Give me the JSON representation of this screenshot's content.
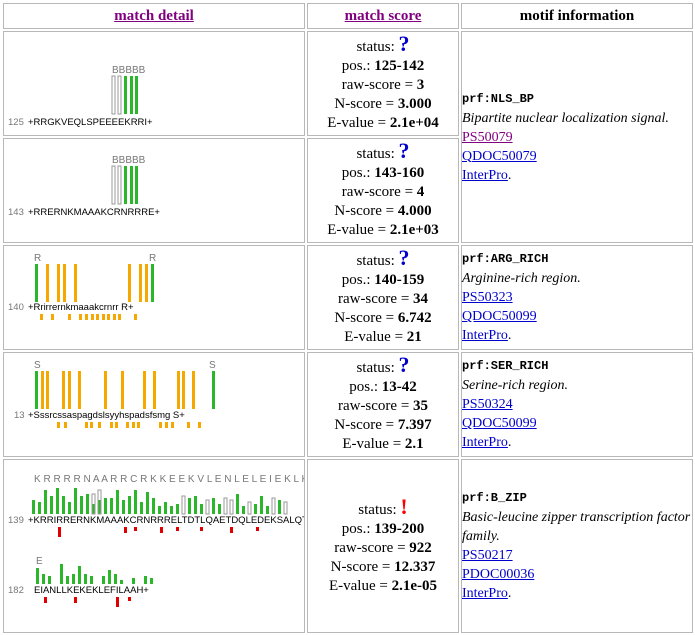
{
  "headers": {
    "detail": "match detail",
    "score": "match score",
    "motif": "motif information"
  },
  "rows": [
    {
      "status_symbol": "?",
      "pos": "125-142",
      "raw_score": "3",
      "n_score": "3.000",
      "e_value": "2.1e+04",
      "motif_id": "prf:NLS_BP",
      "description": "Bipartite nuclear localization signal.",
      "link1": "PS50079",
      "link2": "QDOC50079",
      "link3": "InterPro",
      "seq_start": "125",
      "seq": "+RRGKVEQLSPEEEEKRRI+",
      "labels": "BBBBB"
    },
    {
      "status_symbol": "?",
      "pos": "143-160",
      "raw_score": "4",
      "n_score": "4.000",
      "e_value": "2.1e+03",
      "motif_id": "",
      "description": "",
      "link1": "",
      "link2": "",
      "link3": "",
      "seq_start": "143",
      "seq": "+RRERNKMAAAKCRNRRRE+",
      "labels": "BBBBB"
    },
    {
      "status_symbol": "?",
      "pos": "140-159",
      "raw_score": "34",
      "n_score": "6.742",
      "e_value": "21",
      "motif_id": "prf:ARG_RICH",
      "description": "Arginine-rich region.",
      "link1": "PS50323",
      "link2": "QDOC50099",
      "link3": "InterPro",
      "seq_start": "140",
      "seq": "+Rrirrernkmaaakcrnrr R+",
      "labels": "R"
    },
    {
      "status_symbol": "?",
      "pos": "13-42",
      "raw_score": "35",
      "n_score": "7.397",
      "e_value": "2.1",
      "motif_id": "prf:SER_RICH",
      "description": "Serine-rich region.",
      "link1": "PS50324",
      "link2": "QDOC50099",
      "link3": "InterPro",
      "seq_start": "13",
      "seq": "+Sssrcssaspagdslsyyhspadsfsmg S+",
      "labels": "S"
    },
    {
      "status_symbol": "!",
      "pos": "139-200",
      "raw_score": "922",
      "n_score": "12.337",
      "e_value": "2.1e-05",
      "motif_id": "prf:B_ZIP",
      "description": "Basic-leucine zipper transcription factor family.",
      "link1": "PS50217",
      "link2": "PDOC00036",
      "link3": "InterPro",
      "seq_start": "139",
      "seq": "+KRRIRRERNKMAAAKCRNRRRELTDTLQAETDQLEDEKSALQT",
      "seq_start2": "182",
      "seq2": "EIANLLKEKEKLEFILAAH+",
      "labels": "K R R R R N A A R R C R K K E E K V L E N L E L E I E K L K"
    }
  ],
  "labels_static": {
    "status": "status:",
    "pos": "pos.:",
    "raw": "raw-score =",
    "n": "N-score =",
    "e": "E-value ="
  }
}
